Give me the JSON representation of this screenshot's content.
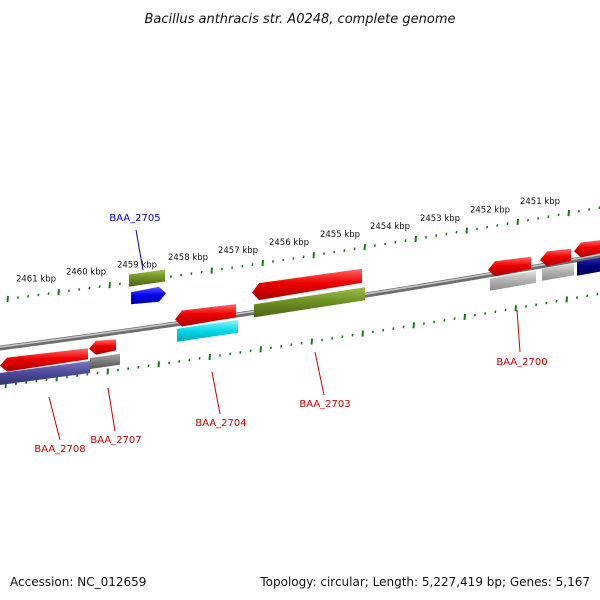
{
  "title": "Bacillus anthracis str. A0248, complete genome",
  "footer": {
    "accession": "Accession: NC_012659",
    "stats": "Topology: circular; Length: 5,227,419 bp; Genes: 5,167"
  },
  "scale_labels": [
    "2461 kbp",
    "2460 kbp",
    "2459 kbp",
    "2458 kbp",
    "2457 kbp",
    "2456 kbp",
    "2455 kbp",
    "2454 kbp",
    "2453 kbp",
    "2452 kbp",
    "2451 kbp"
  ],
  "gene_labels": [
    {
      "name": "BAA_2705",
      "color": "#0000cc"
    },
    {
      "name": "BAA_2708",
      "color": "#cc0000"
    },
    {
      "name": "BAA_2707",
      "color": "#cc0000"
    },
    {
      "name": "BAA_2704",
      "color": "#cc0000"
    },
    {
      "name": "BAA_2703",
      "color": "#cc0000"
    },
    {
      "name": "BAA_2700",
      "color": "#cc0000"
    }
  ],
  "colors": {
    "backbone": "#8a8a8a",
    "ticks": "#1a7a1a",
    "red": "#ee0000",
    "olive": "#6b8e23",
    "blue": "#0000ee",
    "cyan": "#00d8e8",
    "slate": "#4a4a9a",
    "gray": "#7a7a7a",
    "lightgray": "#b0b0b0",
    "navy": "#000080"
  }
}
